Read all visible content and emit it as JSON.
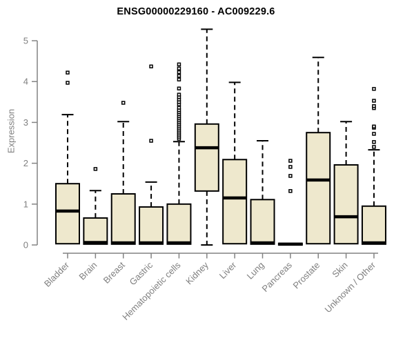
{
  "title": "ENSG00000229160 - AC009229.6",
  "colors": {
    "background": "#ffffff",
    "box_fill": "#EEE8CD",
    "box_border": "#000000",
    "median": "#000000",
    "whisker": "#000000",
    "axis_line": "#828282",
    "axis_text": "#7f7f7f",
    "title_text": "#000000"
  },
  "chart_data": {
    "type": "boxplot",
    "title": "ENSG00000229160 - AC009229.6",
    "xlabel": "",
    "ylabel": "Expression",
    "ylim": [
      0,
      5
    ],
    "y_ticks": [
      0,
      1,
      2,
      3,
      4,
      5
    ],
    "grid": "off",
    "legend": "none",
    "categories": [
      "Bladder",
      "Brain",
      "Breast",
      "Gastric",
      "Hematopoietic cells",
      "Kidney",
      "Liver",
      "Lung",
      "Pancreas",
      "Prostate",
      "Skin",
      "Unknown / Other"
    ],
    "series": [
      {
        "name": "Bladder",
        "low": 0,
        "q1": 0.03,
        "median": 0.83,
        "q3": 1.5,
        "high": 3.19,
        "outliers": [
          3.97,
          4.22
        ]
      },
      {
        "name": "Brain",
        "low": 0,
        "q1": 0.02,
        "median": 0.06,
        "q3": 0.66,
        "high": 1.33,
        "outliers": [
          1.86
        ]
      },
      {
        "name": "Breast",
        "low": 0,
        "q1": 0.02,
        "median": 0.05,
        "q3": 1.25,
        "high": 3.02,
        "outliers": [
          3.48
        ]
      },
      {
        "name": "Gastric",
        "low": 0,
        "q1": 0.02,
        "median": 0.05,
        "q3": 0.93,
        "high": 1.54,
        "outliers": [
          2.55,
          4.37
        ]
      },
      {
        "name": "Hematopoietic cells",
        "low": 0,
        "q1": 0.02,
        "median": 0.05,
        "q3": 1.0,
        "high": 2.53,
        "outliers": [
          2.6,
          2.65,
          2.7,
          2.75,
          2.8,
          2.85,
          2.9,
          2.95,
          3.0,
          3.05,
          3.1,
          3.15,
          3.2,
          3.25,
          3.3,
          3.36,
          3.44,
          3.5,
          3.56,
          3.62,
          3.68,
          3.83,
          4.05,
          4.14,
          4.23,
          4.32,
          4.42
        ]
      },
      {
        "name": "Kidney",
        "low": 0,
        "q1": 1.32,
        "median": 2.38,
        "q3": 2.96,
        "high": 5.28,
        "outliers": []
      },
      {
        "name": "Liver",
        "low": 0,
        "q1": 0.03,
        "median": 1.15,
        "q3": 2.09,
        "high": 3.98,
        "outliers": []
      },
      {
        "name": "Lung",
        "low": 0,
        "q1": 0.02,
        "median": 0.05,
        "q3": 1.11,
        "high": 2.55,
        "outliers": []
      },
      {
        "name": "Pancreas",
        "low": 0,
        "q1": 0.0,
        "median": 0.02,
        "q3": 0.04,
        "high": 0.05,
        "outliers": [
          1.32,
          1.69,
          1.91,
          2.06
        ]
      },
      {
        "name": "Prostate",
        "low": 0,
        "q1": 0.03,
        "median": 1.59,
        "q3": 2.75,
        "high": 4.59,
        "outliers": []
      },
      {
        "name": "Skin",
        "low": 0,
        "q1": 0.03,
        "median": 0.69,
        "q3": 1.96,
        "high": 3.02,
        "outliers": []
      },
      {
        "name": "Unknown / Other",
        "low": 0,
        "q1": 0.02,
        "median": 0.05,
        "q3": 0.95,
        "high": 2.33,
        "outliers": [
          2.4,
          2.52,
          2.72,
          2.87,
          2.9,
          3.35,
          3.4,
          3.53,
          3.82
        ]
      }
    ]
  }
}
